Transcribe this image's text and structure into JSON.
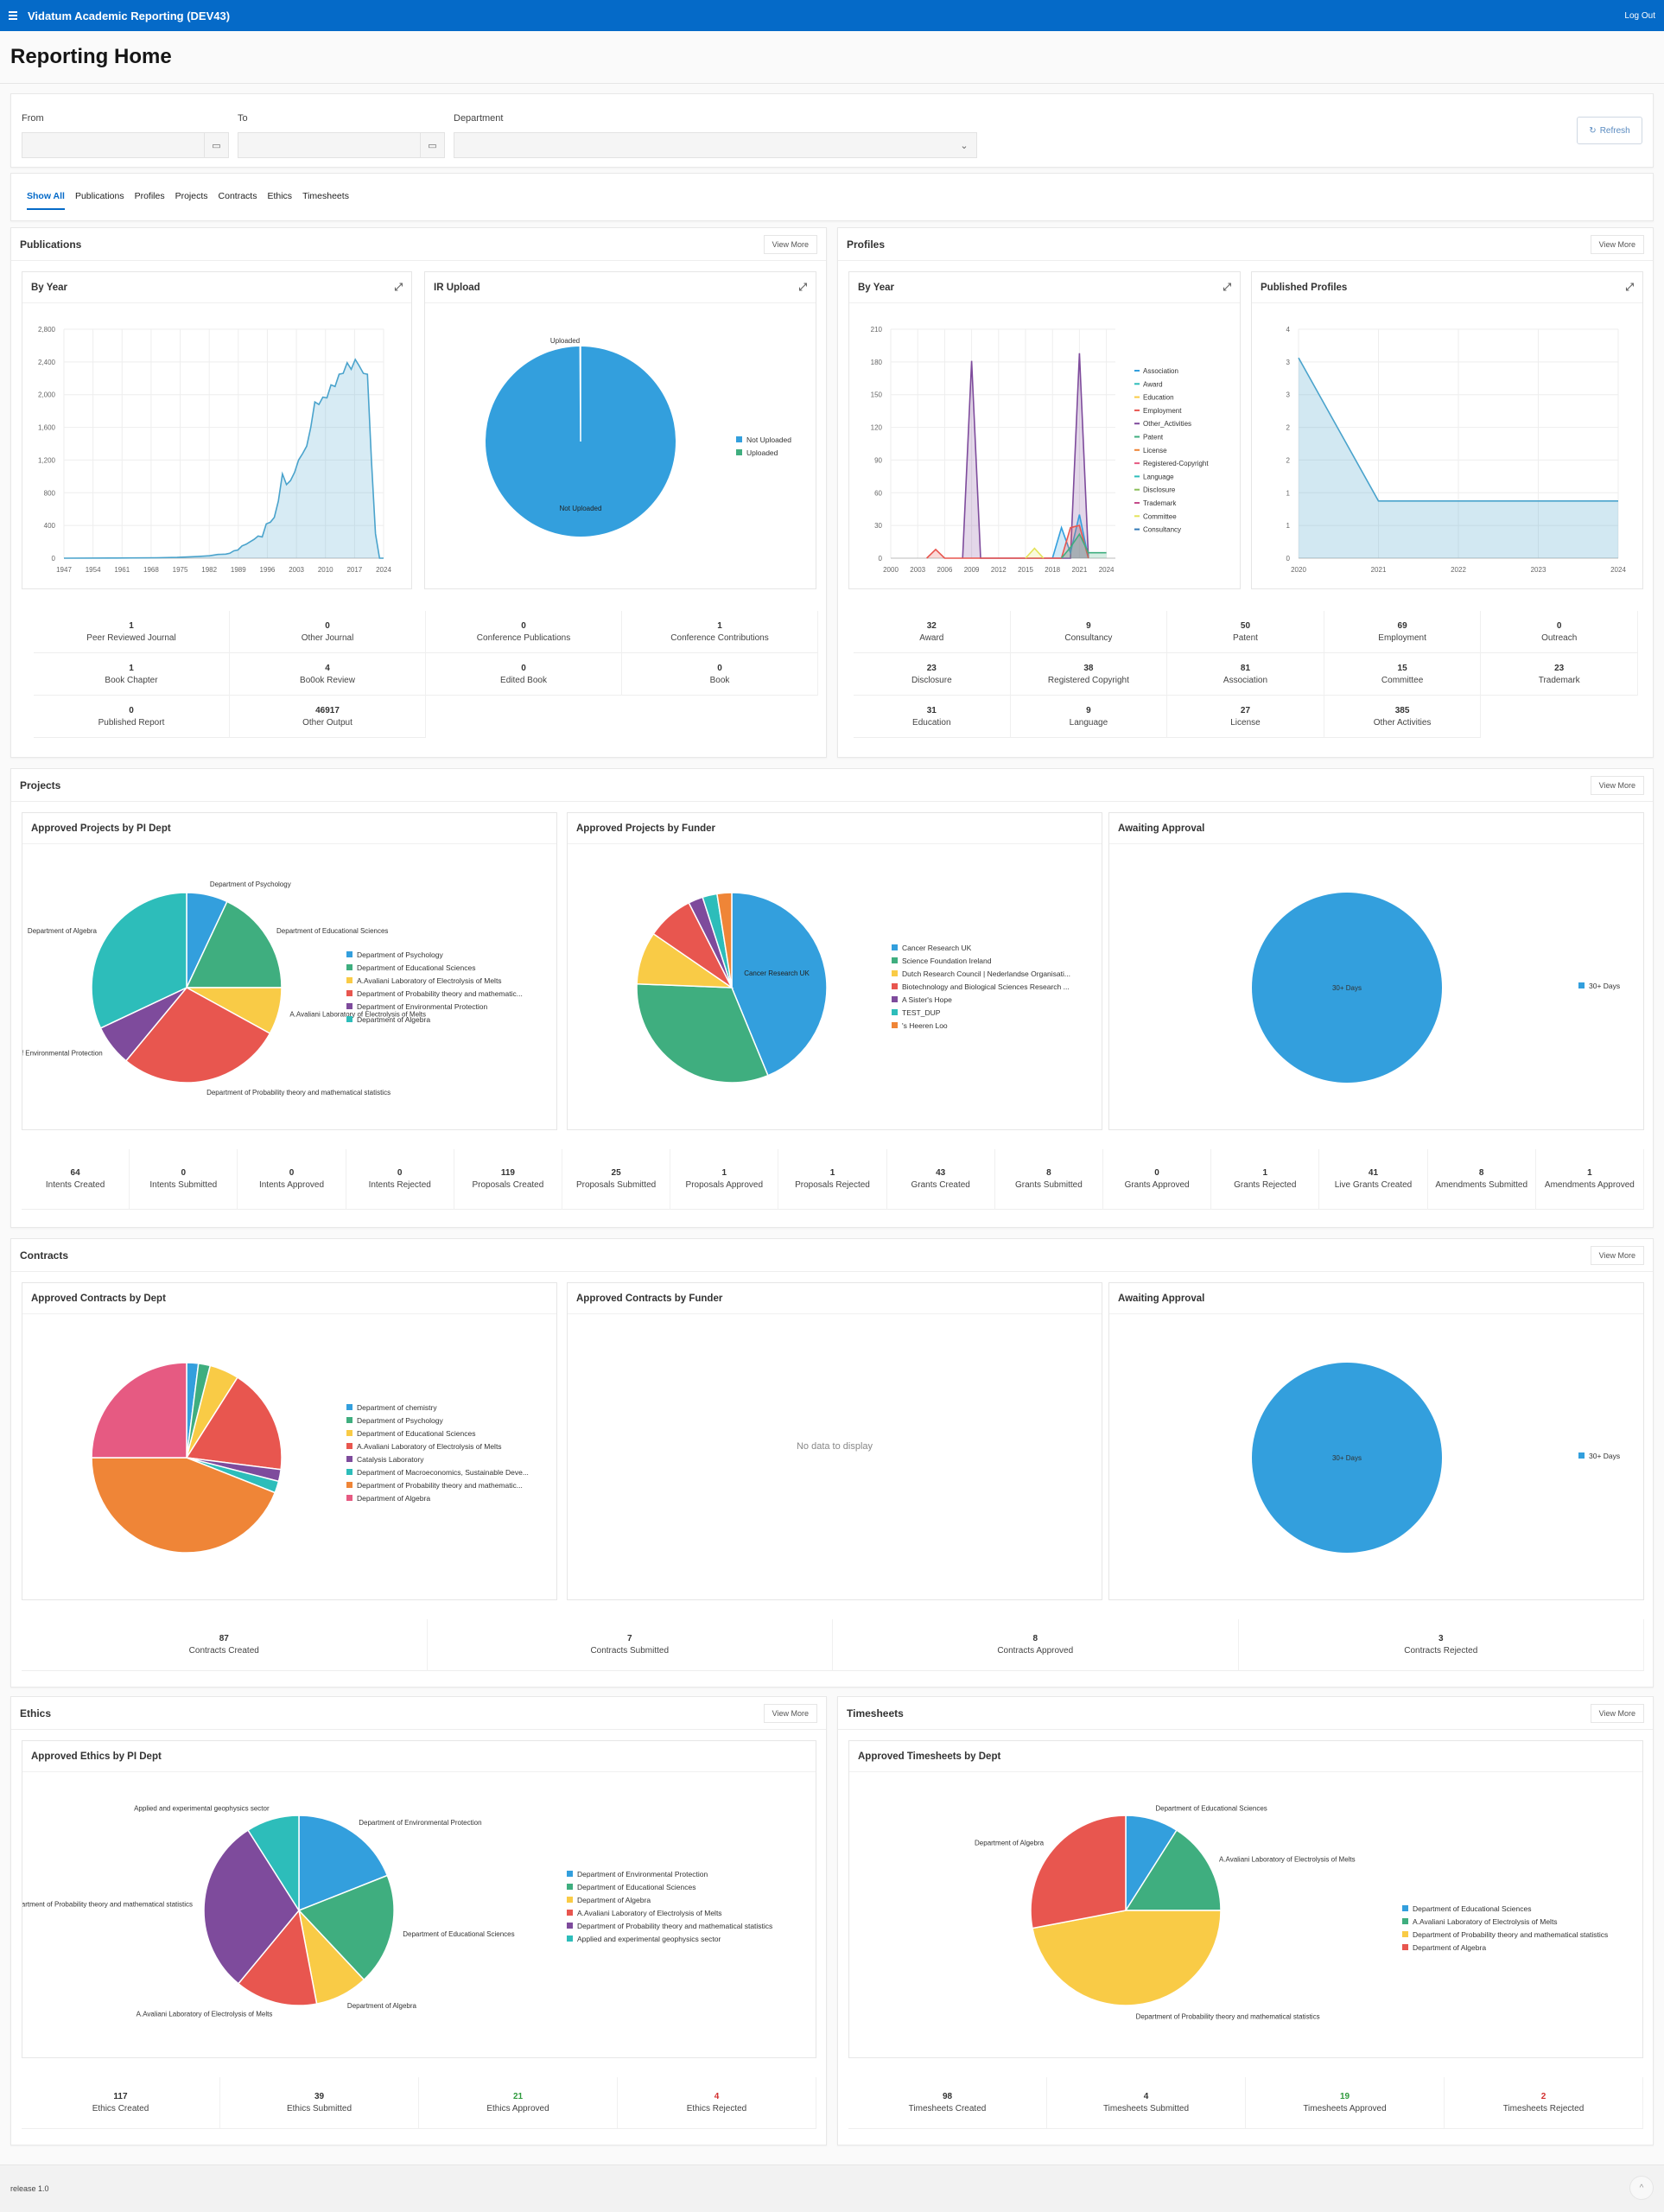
{
  "app": {
    "title": "Vidatum Academic Reporting (DEV43)",
    "logout": "Log Out",
    "page_title": "Reporting Home",
    "footer": "release 1.0"
  },
  "filters": {
    "from_label": "From",
    "to_label": "To",
    "department_label": "Department",
    "from_value": "",
    "to_value": "",
    "department_value": "",
    "refresh": "Refresh"
  },
  "tabs": [
    {
      "label": "Show All",
      "active": true
    },
    {
      "label": "Publications"
    },
    {
      "label": "Profiles"
    },
    {
      "label": "Projects"
    },
    {
      "label": "Contracts"
    },
    {
      "label": "Ethics"
    },
    {
      "label": "Timesheets"
    }
  ],
  "view_more": "View More",
  "colors": {
    "blue": "#339fdd",
    "green": "#3fae7f",
    "yellow": "#f9cb46",
    "red": "#e8564f",
    "purple": "#7e4b9c",
    "teal": "#2dbdba",
    "orange": "#ef8537",
    "pink": "#e65a82",
    "header": "#056ac8"
  },
  "publications": {
    "title": "Publications",
    "stats": [
      {
        "value": "1",
        "label": "Peer Reviewed Journal"
      },
      {
        "value": "0",
        "label": "Other Journal"
      },
      {
        "value": "0",
        "label": "Conference Publications"
      },
      {
        "value": "1",
        "label": "Conference Contributions"
      },
      {
        "value": "1",
        "label": "Book Chapter"
      },
      {
        "value": "4",
        "label": "Bo0ok Review"
      },
      {
        "value": "0",
        "label": "Edited Book"
      },
      {
        "value": "0",
        "label": "Book"
      },
      {
        "value": "0",
        "label": "Published Report"
      },
      {
        "value": "46917",
        "label": "Other Output"
      }
    ]
  },
  "profiles": {
    "title": "Profiles",
    "stats": [
      {
        "value": "32",
        "label": "Award"
      },
      {
        "value": "9",
        "label": "Consultancy"
      },
      {
        "value": "50",
        "label": "Patent"
      },
      {
        "value": "69",
        "label": "Employment"
      },
      {
        "value": "0",
        "label": "Outreach"
      },
      {
        "value": "23",
        "label": "Disclosure"
      },
      {
        "value": "38",
        "label": "Registered Copyright"
      },
      {
        "value": "81",
        "label": "Association"
      },
      {
        "value": "15",
        "label": "Committee"
      },
      {
        "value": "23",
        "label": "Trademark"
      },
      {
        "value": "31",
        "label": "Education"
      },
      {
        "value": "9",
        "label": "Language"
      },
      {
        "value": "27",
        "label": "License"
      },
      {
        "value": "385",
        "label": "Other Activities"
      }
    ]
  },
  "projects": {
    "title": "Projects",
    "stats": [
      {
        "value": "64",
        "label": "Intents Created"
      },
      {
        "value": "0",
        "label": "Intents Submitted"
      },
      {
        "value": "0",
        "label": "Intents Approved"
      },
      {
        "value": "0",
        "label": "Intents Rejected"
      },
      {
        "value": "119",
        "label": "Proposals Created"
      },
      {
        "value": "25",
        "label": "Proposals Submitted"
      },
      {
        "value": "1",
        "label": "Proposals Approved"
      },
      {
        "value": "1",
        "label": "Proposals Rejected"
      },
      {
        "value": "43",
        "label": "Grants Created"
      },
      {
        "value": "8",
        "label": "Grants Submitted"
      },
      {
        "value": "0",
        "label": "Grants Approved"
      },
      {
        "value": "1",
        "label": "Grants Rejected"
      },
      {
        "value": "41",
        "label": "Live Grants Created"
      },
      {
        "value": "8",
        "label": "Amendments Submitted"
      },
      {
        "value": "1",
        "label": "Amendments Approved"
      }
    ]
  },
  "contracts": {
    "title": "Contracts",
    "stats": [
      {
        "value": "87",
        "label": "Contracts Created"
      },
      {
        "value": "7",
        "label": "Contracts Submitted"
      },
      {
        "value": "8",
        "label": "Contracts Approved"
      },
      {
        "value": "3",
        "label": "Contracts Rejected"
      }
    ],
    "no_data": "No data to display"
  },
  "ethics": {
    "title": "Ethics",
    "stats": [
      {
        "value": "117",
        "label": "Ethics Created"
      },
      {
        "value": "39",
        "label": "Ethics Submitted"
      },
      {
        "value": "21",
        "label": "Ethics Approved",
        "tone": "green"
      },
      {
        "value": "4",
        "label": "Ethics Rejected",
        "tone": "red"
      }
    ]
  },
  "timesheets": {
    "title": "Timesheets",
    "stats": [
      {
        "value": "98",
        "label": "Timesheets Created"
      },
      {
        "value": "4",
        "label": "Timesheets Submitted"
      },
      {
        "value": "19",
        "label": "Timesheets Approved",
        "tone": "green"
      },
      {
        "value": "2",
        "label": "Timesheets Rejected",
        "tone": "red"
      }
    ]
  },
  "chart_data": [
    {
      "id": "pub_by_year",
      "type": "area",
      "title": "By Year",
      "ylim": [
        0,
        2800
      ],
      "yticks": [
        "0",
        "400",
        "800",
        "1,200",
        "1,600",
        "2,000",
        "2,400",
        "2,800"
      ],
      "xticks": [
        "1947",
        "1954",
        "1961",
        "1968",
        "1975",
        "1982",
        "1989",
        "1996",
        "2003",
        "2010",
        "2017",
        "2024"
      ],
      "xlim": [
        1947,
        2026
      ],
      "x": [
        1947,
        1960,
        1970,
        1975,
        1980,
        1983,
        1985,
        1987,
        1988,
        1989,
        1990,
        1991,
        1992,
        1993,
        1994,
        1995,
        1996,
        1997,
        1998,
        1999,
        2000,
        2001,
        2002,
        2003,
        2004,
        2005,
        2006,
        2007,
        2008,
        2009,
        2010,
        2011,
        2012,
        2013,
        2014,
        2015,
        2016,
        2017,
        2018,
        2019,
        2020,
        2021,
        2022,
        2023,
        2024,
        2025,
        2026
      ],
      "values": [
        0,
        2,
        5,
        10,
        20,
        30,
        45,
        50,
        60,
        90,
        100,
        150,
        170,
        200,
        230,
        270,
        260,
        420,
        440,
        500,
        700,
        1030,
        900,
        950,
        1050,
        1200,
        1280,
        1370,
        1600,
        1910,
        1880,
        1970,
        1960,
        2120,
        2100,
        2250,
        2260,
        2390,
        2310,
        2430,
        2350,
        2260,
        2250,
        1200,
        300,
        0,
        0
      ],
      "color": "#4aa3cc"
    },
    {
      "id": "ir_upload",
      "type": "pie",
      "title": "IR Upload",
      "labels": [
        "Not Uploaded",
        "Uploaded"
      ],
      "values": [
        99.9,
        0.1
      ],
      "colors": [
        "#339fdd",
        "#3fae7f"
      ]
    },
    {
      "id": "profiles_by_year",
      "type": "line",
      "title": "By Year",
      "ylim": [
        0,
        210
      ],
      "yticks": [
        "0",
        "30",
        "60",
        "90",
        "120",
        "150",
        "180",
        "210"
      ],
      "xticks": [
        "2000",
        "2003",
        "2006",
        "2009",
        "2012",
        "2015",
        "2018",
        "2021",
        "2024"
      ],
      "xlim": [
        2000,
        2025
      ],
      "legend": [
        "Association",
        "Award",
        "Education",
        "Employment",
        "Other_Activities",
        "Patent",
        "License",
        "Registered-Copyright",
        "Language",
        "Disclosure",
        "Trademark",
        "Committee",
        "Consultancy"
      ],
      "legend_colors": [
        "#339fdd",
        "#2dbdba",
        "#f9cb46",
        "#e8564f",
        "#7e4b9c",
        "#3fae7f",
        "#ef8537",
        "#e65a82",
        "#2dbdba",
        "#8bbf5a",
        "#c44b8a",
        "#e4e35a",
        "#337ab7"
      ],
      "series": [
        {
          "name": "Other_Activities",
          "x": [
            2008,
            2009,
            2010,
            2020,
            2021,
            2022
          ],
          "values": [
            0,
            181,
            0,
            0,
            188,
            0
          ],
          "color": "#7e4b9c"
        },
        {
          "name": "Association",
          "x": [
            2018,
            2019,
            2020,
            2021,
            2022
          ],
          "values": [
            0,
            28,
            5,
            40,
            0
          ],
          "color": "#339fdd"
        },
        {
          "name": "Employment",
          "x": [
            2004,
            2005,
            2006,
            2019,
            2020,
            2021,
            2022
          ],
          "values": [
            0,
            8,
            0,
            0,
            28,
            30,
            0
          ],
          "color": "#e8564f"
        },
        {
          "name": "Committee",
          "x": [
            2015,
            2016,
            2017
          ],
          "values": [
            0,
            9,
            0
          ],
          "color": "#e4e35a"
        },
        {
          "name": "Patent",
          "x": [
            2019,
            2020,
            2021,
            2022,
            2024
          ],
          "values": [
            0,
            10,
            22,
            5,
            5
          ],
          "color": "#3fae7f"
        }
      ]
    },
    {
      "id": "published_profiles",
      "type": "area",
      "title": "Published Profiles",
      "ylim": [
        0,
        4
      ],
      "yticks": [
        "0",
        "1",
        "1",
        "2",
        "2",
        "3",
        "3",
        "4"
      ],
      "xticks": [
        "2020",
        "2021",
        "2022",
        "2023",
        "2024"
      ],
      "x": [
        2020,
        2021,
        2022,
        2023,
        2024
      ],
      "values": [
        3.5,
        1,
        1,
        1,
        1
      ],
      "color": "#4aa3cc"
    },
    {
      "id": "projects_by_dept",
      "type": "pie",
      "title": "Approved Projects by PI Dept",
      "labels": [
        "Department of Psychology",
        "Department of Educational Sciences",
        "A.Avaliani Laboratory of Electrolysis of Melts",
        "Department of Probability theory and mathematical statistics",
        "Department of Environmental Protection",
        "Department of Algebra"
      ],
      "legend_labels": [
        "Department of Psychology",
        "Department of Educational Sciences",
        "A.Avaliani Laboratory of Electrolysis of Melts",
        "Department of Probability theory and mathematic...",
        "Department of Environmental Protection",
        "Department of Algebra"
      ],
      "values": [
        7,
        18,
        8,
        28,
        7,
        32
      ],
      "colors": [
        "#339fdd",
        "#3fae7f",
        "#f9cb46",
        "#e8564f",
        "#7e4b9c",
        "#2dbdba"
      ]
    },
    {
      "id": "projects_by_funder",
      "type": "pie",
      "title": "Approved Projects by Funder",
      "labels": [
        "Cancer Research UK",
        "Science Foundation Ireland",
        "Dutch Research Council | Nederlandse Organisati...",
        "Biotechnology and Biological Sciences Research ...",
        "A Sister's Hope",
        "TEST_DUP",
        "'s Heeren Loo"
      ],
      "values": [
        44,
        32,
        9,
        8,
        2.5,
        2.5,
        2.5
      ],
      "colors": [
        "#339fdd",
        "#3fae7f",
        "#f9cb46",
        "#e8564f",
        "#7e4b9c",
        "#2dbdba",
        "#ef8537"
      ]
    },
    {
      "id": "projects_awaiting",
      "type": "pie",
      "title": "Awaiting Approval",
      "labels": [
        "30+ Days"
      ],
      "values": [
        100
      ],
      "colors": [
        "#339fdd"
      ]
    },
    {
      "id": "contracts_by_dept",
      "type": "pie",
      "title": "Approved Contracts by Dept",
      "labels": [
        "Department of chemistry",
        "Department of Psychology",
        "Department of Educational Sciences",
        "A.Avaliani Laboratory of Electrolysis of Melts",
        "Catalysis Laboratory",
        "Department of Macroeconomics, Sustainable Deve...",
        "Department of Probability theory and mathematic...",
        "Department of Algebra"
      ],
      "values": [
        2,
        2,
        5,
        18,
        2,
        2,
        44,
        25
      ],
      "colors": [
        "#339fdd",
        "#3fae7f",
        "#f9cb46",
        "#e8564f",
        "#7e4b9c",
        "#2dbdba",
        "#ef8537",
        "#e65a82"
      ]
    },
    {
      "id": "contracts_by_funder",
      "type": "pie",
      "title": "Approved Contracts by Funder",
      "labels": [],
      "values": []
    },
    {
      "id": "contracts_awaiting",
      "type": "pie",
      "title": "Awaiting Approval",
      "labels": [
        "30+ Days"
      ],
      "values": [
        100
      ],
      "colors": [
        "#339fdd"
      ]
    },
    {
      "id": "ethics_by_dept",
      "type": "pie",
      "title": "Approved Ethics by PI Dept",
      "labels": [
        "Department of Environmental Protection",
        "Department of Educational Sciences",
        "Department of Algebra",
        "A.Avaliani Laboratory of Electrolysis of Melts",
        "Department of Probability theory and mathematical statistics",
        "Applied and experimental geophysics sector"
      ],
      "values": [
        19,
        19,
        9,
        14,
        30,
        9
      ],
      "colors": [
        "#339fdd",
        "#3fae7f",
        "#f9cb46",
        "#e8564f",
        "#7e4b9c",
        "#2dbdba"
      ]
    },
    {
      "id": "timesheets_by_dept",
      "type": "pie",
      "title": "Approved Timesheets by Dept",
      "labels": [
        "Department of Educational Sciences",
        "A.Avaliani Laboratory of Electrolysis of Melts",
        "Department of Probability theory and mathematical statistics",
        "Department of Algebra"
      ],
      "values": [
        9,
        16,
        47,
        28
      ],
      "colors": [
        "#339fdd",
        "#3fae7f",
        "#f9cb46",
        "#e8564f"
      ]
    }
  ]
}
